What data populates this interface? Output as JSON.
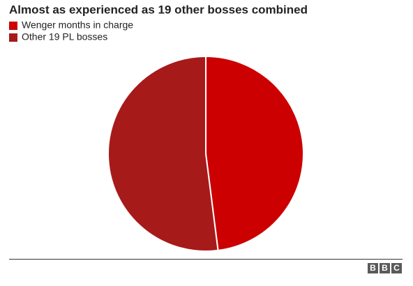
{
  "chart_data": {
    "type": "pie",
    "title": "Almost as experienced as 19 other bosses combined",
    "categories": [
      "Wenger months in charge",
      "Other 19 PL bosses"
    ],
    "values": [
      48,
      52
    ],
    "colors": [
      "#cc0000",
      "#a71a1a"
    ],
    "legend": "top-left"
  },
  "branding": [
    "B",
    "B",
    "C"
  ]
}
